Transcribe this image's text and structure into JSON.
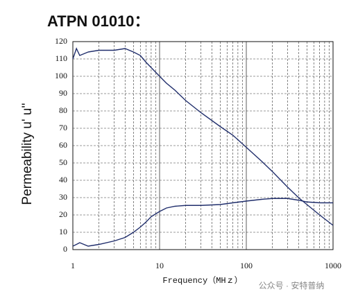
{
  "chart_data": {
    "type": "line",
    "title": "ATPN 01010：",
    "y_label": "Permeability u' u''",
    "x_label": "Frequency（MHｚ）",
    "watermark": "公众号 · 安特普纳",
    "xscale": "log",
    "grid": true,
    "xlim": [
      1,
      1000
    ],
    "xticks": [
      1,
      10,
      100,
      1000
    ],
    "ylim": [
      0,
      120
    ],
    "yticks": [
      0,
      10,
      20,
      30,
      40,
      50,
      60,
      70,
      80,
      90,
      100,
      110,
      120
    ],
    "x": [
      1,
      1.1,
      1.2,
      1.5,
      2,
      3,
      4,
      5,
      6,
      7,
      8,
      10,
      12,
      15,
      20,
      30,
      50,
      70,
      100,
      150,
      200,
      300,
      400,
      500,
      700,
      1000
    ],
    "series": [
      {
        "color": "#1f2d6b",
        "values": [
          110,
          116,
          112,
          114,
          115,
          115,
          116,
          114,
          112,
          108,
          105,
          100,
          96,
          92,
          86,
          79,
          71,
          66,
          59,
          51,
          45,
          36,
          30,
          26,
          20,
          14
        ]
      },
      {
        "color": "#1f2d6b",
        "values": [
          2,
          3,
          4,
          2,
          3,
          5,
          7,
          10,
          13,
          16,
          19,
          22,
          24,
          25,
          25.5,
          25.5,
          26,
          27,
          28,
          29,
          29.5,
          29.5,
          28.5,
          27.5,
          27,
          27
        ]
      }
    ]
  }
}
